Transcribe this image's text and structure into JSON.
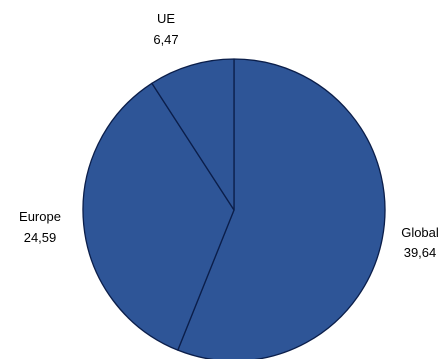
{
  "chart_data": {
    "type": "pie",
    "slices": [
      {
        "label": "Global",
        "value_text": "39,64",
        "value": 39.64
      },
      {
        "label": "Europe",
        "value_text": "24,59",
        "value": 24.59
      },
      {
        "label": "UE",
        "value_text": "6,47",
        "value": 6.47
      }
    ],
    "colors": {
      "fill": "#2E5597",
      "stroke": "#0B1E4A"
    },
    "legend": "none"
  }
}
